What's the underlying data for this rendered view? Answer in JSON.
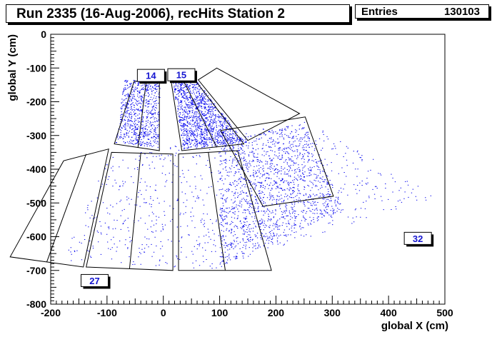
{
  "title": "Run 2335 (16-Aug-2006), recHits Station 2",
  "stats": {
    "label": "Entries",
    "value": "130103"
  },
  "colors": {
    "hits": "#0000ee",
    "axis": "#000000",
    "label_text": "#1515d0"
  },
  "chart_data": {
    "type": "scatter",
    "title": "Run 2335 (16-Aug-2006), recHits Station 2",
    "xlabel": "global X (cm)",
    "ylabel": "global Y (cm)",
    "xlim": [
      -200,
      500
    ],
    "ylim": [
      -800,
      0
    ],
    "xticks": [
      "-200",
      "-100",
      "0",
      "100",
      "200",
      "300",
      "400",
      "500"
    ],
    "yticks": [
      "0",
      "-100",
      "-200",
      "-300",
      "-400",
      "-500",
      "-600",
      "-700",
      "-800"
    ],
    "entries": 130103,
    "chamber_labels": [
      {
        "text": "14",
        "x": -22,
        "y": -122
      },
      {
        "text": "15",
        "x": 32,
        "y": -120
      },
      {
        "text": "27",
        "x": -122,
        "y": -730
      },
      {
        "text": "32",
        "x": 452,
        "y": -605
      }
    ],
    "chambers": [
      {
        "name": "inner-14",
        "outline": [
          [
            -52,
            -140
          ],
          [
            -7,
            -130
          ],
          [
            -7,
            -345
          ],
          [
            -87,
            -325
          ]
        ],
        "dividers": [
          [
            [
              -30,
              -135
            ],
            [
              -45,
              -335
            ]
          ]
        ]
      },
      {
        "name": "inner-15",
        "outline": [
          [
            13,
            -130
          ],
          [
            58,
            -140
          ],
          [
            143,
            -325
          ],
          [
            33,
            -345
          ]
        ],
        "dividers": [
          [
            [
              35,
              -135
            ],
            [
              95,
              -335
            ]
          ]
        ]
      },
      {
        "name": "inner-16",
        "outline": [
          [
            62,
            -135
          ],
          [
            95,
            -100
          ],
          [
            242,
            -235
          ],
          [
            150,
            -315
          ]
        ],
        "dividers": []
      },
      {
        "name": "outer-27",
        "outline": [
          [
            -97,
            -340
          ],
          [
            -177,
            -375
          ],
          [
            -272,
            -660
          ],
          [
            -142,
            -690
          ]
        ],
        "dividers": [
          [
            [
              -137,
              -355
            ],
            [
              -207,
              -675
            ]
          ]
        ]
      },
      {
        "name": "outer-28",
        "outline": [
          [
            -92,
            -350
          ],
          [
            17,
            -355
          ],
          [
            17,
            -700
          ],
          [
            -137,
            -690
          ]
        ],
        "dividers": [
          [
            [
              -40,
              -352
            ],
            [
              -60,
              -695
            ]
          ]
        ]
      },
      {
        "name": "outer-29",
        "outline": [
          [
            27,
            -355
          ],
          [
            132,
            -345
          ],
          [
            192,
            -700
          ],
          [
            27,
            -700
          ]
        ],
        "dividers": [
          [
            [
              80,
              -350
            ],
            [
              110,
              -700
            ]
          ]
        ]
      },
      {
        "name": "outer-outer",
        "outline": [
          [
            102,
            -285
          ],
          [
            252,
            -245
          ],
          [
            302,
            -480
          ],
          [
            177,
            -510
          ]
        ],
        "dividers": []
      }
    ],
    "sectors": [
      {
        "name": "upper-fan",
        "apex": [
          120,
          -105
        ],
        "radius_in": 175,
        "radius_out": 240,
        "ang_from": 180,
        "ang_to": 312
      },
      {
        "name": "lower-fan",
        "apex": [
          -110,
          -265
        ],
        "radius_in": 100,
        "radius_out": 380,
        "ang_from": 155,
        "ang_to": 333
      }
    ],
    "hit_regions": [
      {
        "name": "ring1-left",
        "poly": [
          [
            -70,
            -135
          ],
          [
            -5,
            -130
          ],
          [
            -10,
            -335
          ],
          [
            -85,
            -320
          ]
        ],
        "density": 0.35
      },
      {
        "name": "ring1-right",
        "poly": [
          [
            15,
            -130
          ],
          [
            60,
            -140
          ],
          [
            145,
            -320
          ],
          [
            35,
            -340
          ]
        ],
        "density": 0.9
      },
      {
        "name": "ring2-all",
        "poly": [
          [
            -100,
            -360
          ],
          [
            250,
            -250
          ],
          [
            485,
            -480
          ],
          [
            80,
            -700
          ],
          [
            -180,
            -670
          ]
        ],
        "density": 0.55
      },
      {
        "name": "ring2-dense",
        "poly": [
          [
            100,
            -320
          ],
          [
            250,
            -260
          ],
          [
            320,
            -520
          ],
          [
            100,
            -690
          ]
        ],
        "density": 0.8
      }
    ]
  }
}
